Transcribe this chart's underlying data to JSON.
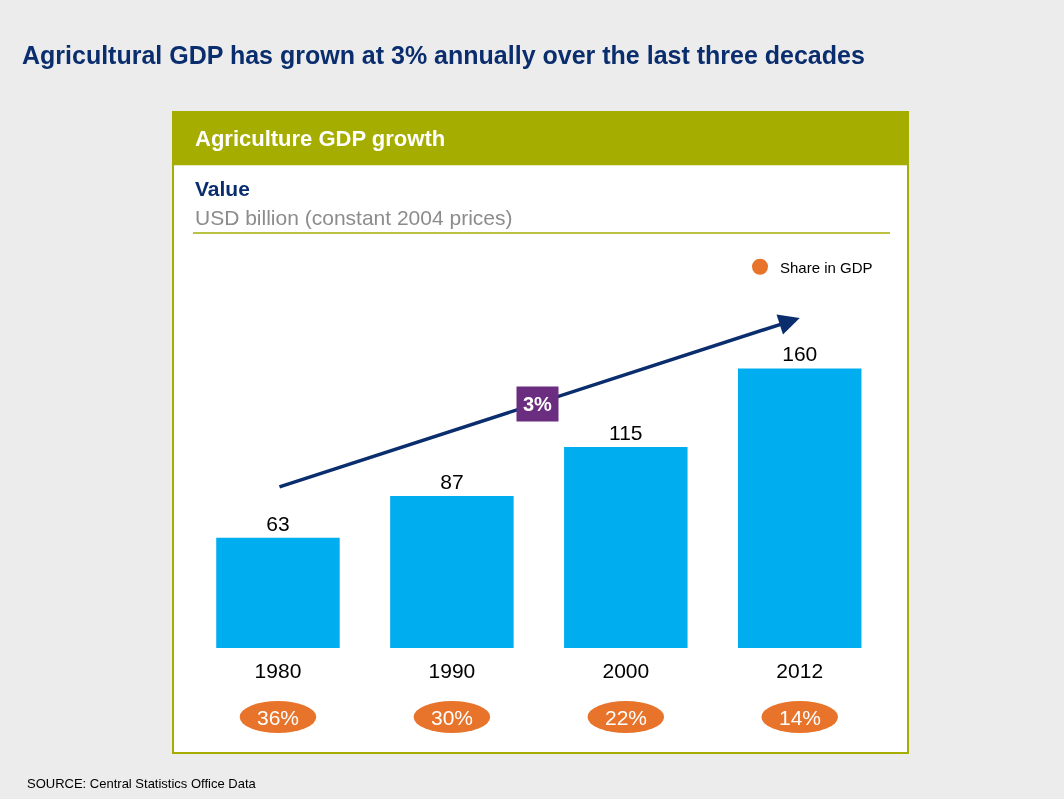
{
  "chart_data": {
    "type": "bar",
    "title": "Agricultural GDP has grown at 3% annually over the last three decades",
    "subtitle": "Agriculture GDP growth",
    "categories": [
      "1980",
      "1990",
      "2000",
      "2012"
    ],
    "values": [
      63,
      87,
      115,
      160
    ],
    "color": "#00adef",
    "data_labels": true,
    "annotations": [
      "Value",
      "USD billion (constant 2004 prices)",
      "3%",
      "Share in GDP",
      "36%",
      "30%",
      "22%",
      "14%",
      "SOURCE: Central Statistics Office Data"
    ]
  }
}
